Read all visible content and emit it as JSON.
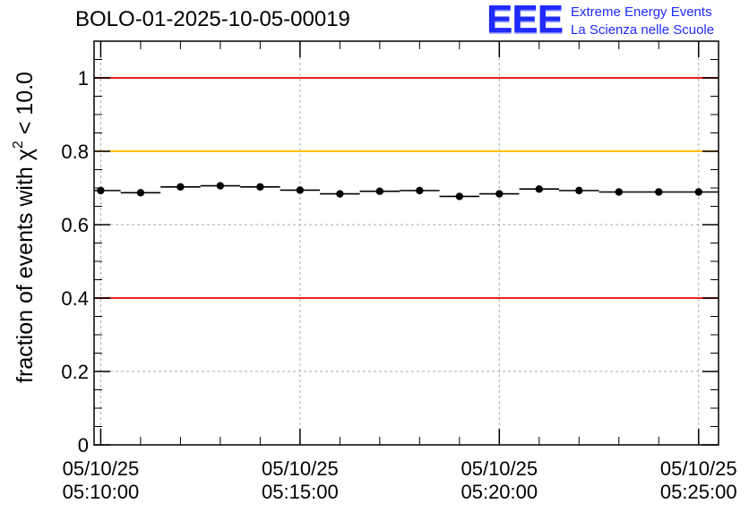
{
  "chart_data": {
    "type": "scatter",
    "title": "BOLO-01-2025-10-05-00019",
    "ylabel": "fraction of events with χ² < 10.0",
    "ylabel_main": "fraction of events with χ",
    "ylabel_sup": "2",
    "ylabel_tail": " < 10.0",
    "xlabel": "",
    "ylim": [
      0,
      1.1
    ],
    "xlim": [
      "05/10/25 05:09:50",
      "05/10/25 05:25:30"
    ],
    "y_ticks": [
      0,
      0.2,
      0.4,
      0.6,
      0.8,
      1
    ],
    "y_tick_labels": [
      "0",
      "0.2",
      "0.4",
      "0.6",
      "0.8",
      "1"
    ],
    "x_tick_labels": [
      {
        "time_min": 0,
        "date": "05/10/25",
        "time": "05:10:00"
      },
      {
        "time_min": 5,
        "date": "05/10/25",
        "time": "05:15:00"
      },
      {
        "time_min": 10,
        "date": "05/10/25",
        "time": "05:20:00"
      },
      {
        "time_min": 15,
        "date": "05/10/25",
        "time": "05:25:00"
      }
    ],
    "x_unit": "minutes after 05:10:00",
    "x_range_min": [
      -0.167,
      15.5
    ],
    "bin_width_min": 1.0,
    "series": [
      {
        "name": "fraction",
        "x_min": [
          0,
          1,
          2,
          3,
          4,
          5,
          6,
          7,
          8,
          9,
          10,
          11,
          12,
          13,
          14,
          15
        ],
        "values": [
          0.693,
          0.687,
          0.703,
          0.706,
          0.703,
          0.694,
          0.684,
          0.691,
          0.693,
          0.677,
          0.684,
          0.697,
          0.693,
          0.689,
          0.689,
          0.689
        ]
      }
    ],
    "reference_lines": [
      {
        "y": 1.0,
        "color": "#e8201a"
      },
      {
        "y": 0.8,
        "color": "#ffc000"
      },
      {
        "y": 0.4,
        "color": "#e8201a"
      }
    ],
    "grid": true
  },
  "logo": {
    "letters": "EEE",
    "line1": "Extreme Energy Events",
    "line2": "La Scienza nelle Scuole"
  }
}
